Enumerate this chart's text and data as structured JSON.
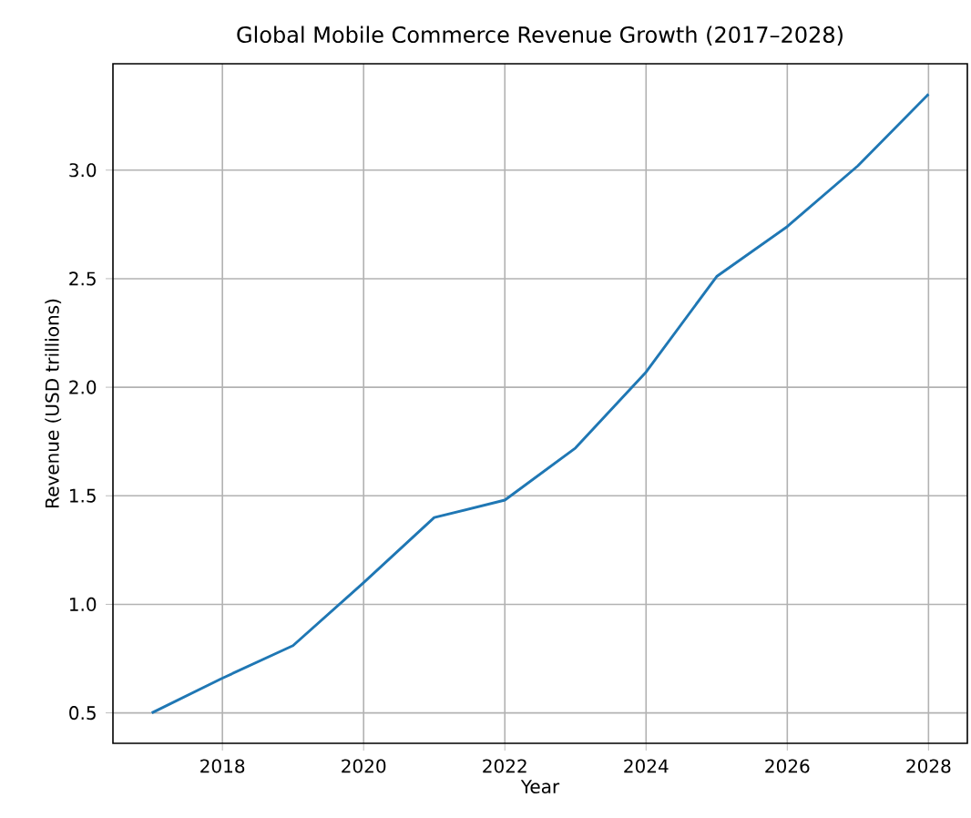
{
  "chart_data": {
    "type": "line",
    "title": "Global Mobile Commerce Revenue Growth (2017–2028)",
    "xlabel": "Year",
    "ylabel": "Revenue (USD trillions)",
    "x": [
      2017,
      2018,
      2019,
      2020,
      2021,
      2022,
      2023,
      2024,
      2025,
      2026,
      2027,
      2028
    ],
    "series": [
      {
        "color": "#1f77b4",
        "values": [
          0.5,
          0.66,
          0.81,
          1.1,
          1.4,
          1.48,
          1.72,
          2.07,
          2.51,
          2.74,
          3.02,
          3.35
        ]
      }
    ],
    "xlim": [
      2016.45,
      2028.55
    ],
    "ylim": [
      0.36,
      3.49
    ],
    "xticks": [
      2018,
      2020,
      2022,
      2024,
      2026,
      2028
    ],
    "yticks": [
      0.5,
      {
        "value": 1,
        "label": "1.0"
      },
      1.5,
      {
        "value": 2,
        "label": "2.0"
      },
      2.5,
      {
        "value": 3,
        "label": "3.0"
      }
    ],
    "grid": true
  }
}
